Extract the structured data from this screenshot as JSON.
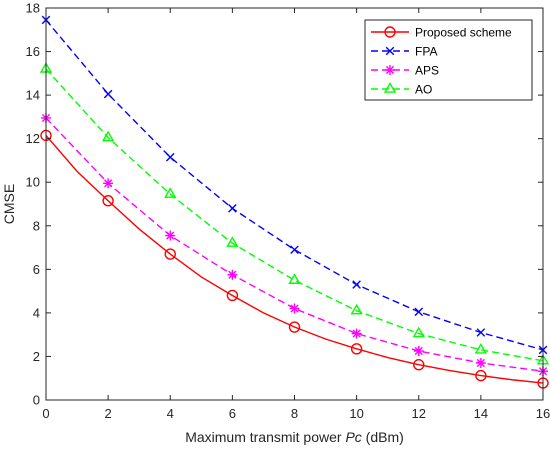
{
  "chart_data": {
    "type": "line",
    "xlabel_prefix": "Maximum transmit power ",
    "xlabel_var": "Pc",
    "xlabel_suffix": " (dBm)",
    "ylabel": "CMSE",
    "xlim": [
      0,
      16
    ],
    "ylim": [
      0,
      18
    ],
    "x_ticks": [
      "0",
      "2",
      "4",
      "6",
      "8",
      "10",
      "12",
      "14",
      "16"
    ],
    "y_ticks": [
      "0",
      "2",
      "4",
      "6",
      "8",
      "10",
      "12",
      "14",
      "16",
      "18"
    ],
    "grid": false,
    "legend_position": "top-right",
    "series": [
      {
        "name": "Proposed scheme",
        "color": "#ff0000",
        "line": "solid",
        "marker": "circle",
        "x": [
          0,
          1,
          2,
          3,
          4,
          5,
          6,
          7,
          8,
          9,
          10,
          11,
          12,
          13,
          14,
          15,
          16
        ],
        "y": [
          12.15,
          10.5,
          9.15,
          7.85,
          6.7,
          5.65,
          4.8,
          4.0,
          3.35,
          2.8,
          2.35,
          1.95,
          1.62,
          1.35,
          1.12,
          0.93,
          0.78
        ],
        "marker_x": [
          0,
          2,
          4,
          6,
          8,
          10,
          12,
          14,
          16
        ]
      },
      {
        "name": "FPA",
        "color": "#0000ff",
        "line": "dashed",
        "marker": "x",
        "x": [
          0,
          2,
          4,
          6,
          8,
          10,
          12,
          14,
          16
        ],
        "y": [
          17.45,
          14.05,
          11.15,
          8.8,
          6.9,
          5.3,
          4.05,
          3.1,
          2.3
        ],
        "marker_x": [
          0,
          2,
          4,
          6,
          8,
          10,
          12,
          14,
          16
        ]
      },
      {
        "name": "APS",
        "color": "#ff00ff",
        "line": "dashed",
        "marker": "asterisk",
        "x": [
          0,
          2,
          4,
          6,
          8,
          10,
          12,
          14,
          16
        ],
        "y": [
          12.95,
          9.95,
          7.55,
          5.75,
          4.2,
          3.05,
          2.25,
          1.7,
          1.32
        ],
        "marker_x": [
          0,
          2,
          4,
          6,
          8,
          10,
          12,
          14,
          16
        ]
      },
      {
        "name": "AO",
        "color": "#00ff00",
        "line": "dashed",
        "marker": "triangle",
        "x": [
          0,
          2,
          4,
          6,
          8,
          10,
          12,
          14,
          16
        ],
        "y": [
          15.2,
          12.05,
          9.45,
          7.2,
          5.5,
          4.1,
          3.05,
          2.3,
          1.8
        ],
        "marker_x": [
          0,
          2,
          4,
          6,
          8,
          10,
          12,
          14,
          16
        ]
      }
    ]
  }
}
